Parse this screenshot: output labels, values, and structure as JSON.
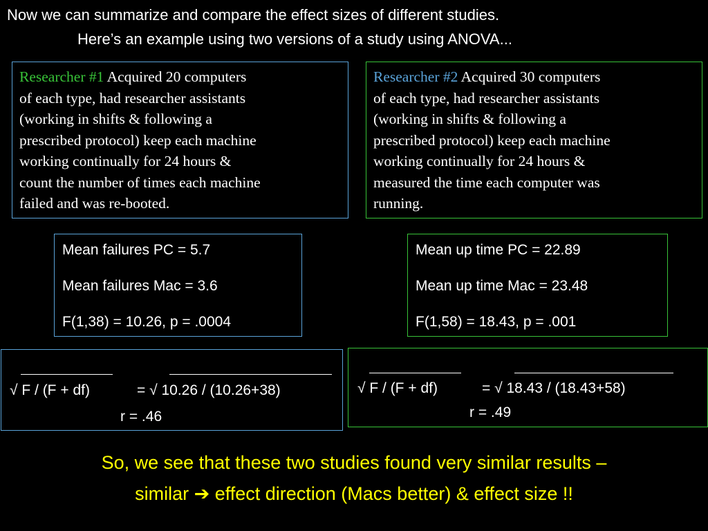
{
  "header": {
    "line1": "Now we can summarize and compare the effect sizes of different studies.",
    "line2": "Here’s an example using two versions of a study using ANOVA..."
  },
  "researcher1": {
    "label": "Researcher #1",
    "line1_rest": " Acquired 20 computers",
    "lines": [
      "of each type, had researcher assistants",
      "(working in shifts & following a",
      "prescribed protocol) keep each machine",
      "working continually for 24 hours &",
      "count the number of times each machine",
      "failed and was re-booted."
    ]
  },
  "researcher2": {
    "label": "Researcher #2",
    "line1_rest": " Acquired 30 computers",
    "lines": [
      "of each type, had researcher assistants",
      "(working in shifts & following a",
      "prescribed protocol) keep each machine",
      "working continually for 24 hours &",
      "measured the time each computer was",
      "running."
    ]
  },
  "results1": {
    "mean_pc": "Mean failures PC = 5.7",
    "mean_mac": "Mean failures Mac = 3.6",
    "f_test": "F(1,38) = 10.26, p = .0004"
  },
  "results2": {
    "mean_pc": "Mean up time PC = 22.89",
    "mean_mac": "Mean up time Mac = 23.48",
    "f_test": "F(1,58) = 18.43, p = .001"
  },
  "effect1": {
    "formula": "√ F / (F + df)",
    "equals": "= √ 10.26 / (10.26+38)",
    "r": "r = .46"
  },
  "effect2": {
    "formula": "√ F / (F + df)",
    "equals": "= √ 18.43 / (18.43+58)",
    "r": "r = .49"
  },
  "conclusion": {
    "line1": "So, we see that these two studies found very similar results –",
    "line2": "similar ➔ effect direction  (Macs better) & effect size !!"
  },
  "colors": {
    "background": "#000000",
    "text": "#ffffff",
    "blue_border": "#5aa3d9",
    "green_border": "#38c238",
    "conclusion": "#ffff00"
  }
}
